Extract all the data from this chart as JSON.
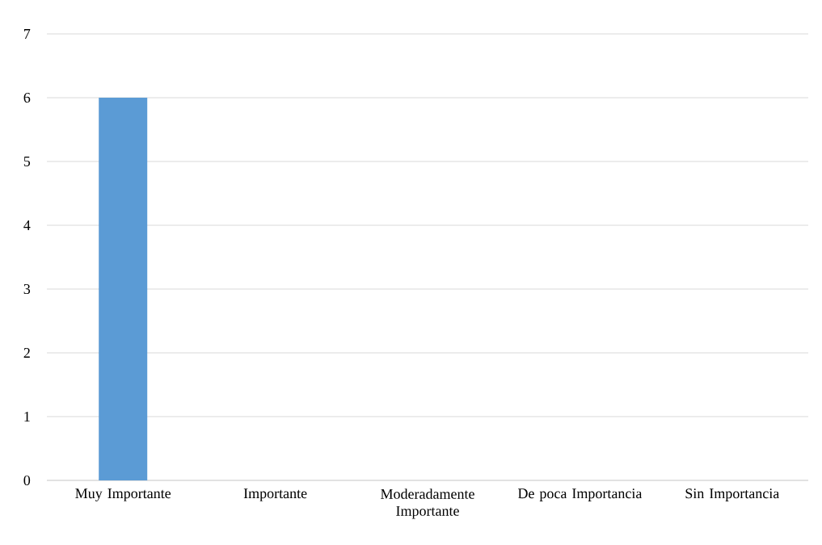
{
  "chart_data": {
    "type": "bar",
    "categories": [
      "Muy Importante",
      "Importante",
      "Moderadamente Importante",
      "De poca Importancia",
      "Sin Importancia"
    ],
    "values": [
      6,
      0,
      0,
      0,
      0
    ],
    "color": "#5b9bd5",
    "ylim": [
      0,
      7
    ],
    "yticks": [
      0,
      1,
      2,
      3,
      4,
      5,
      6,
      7
    ],
    "grid": "y"
  }
}
